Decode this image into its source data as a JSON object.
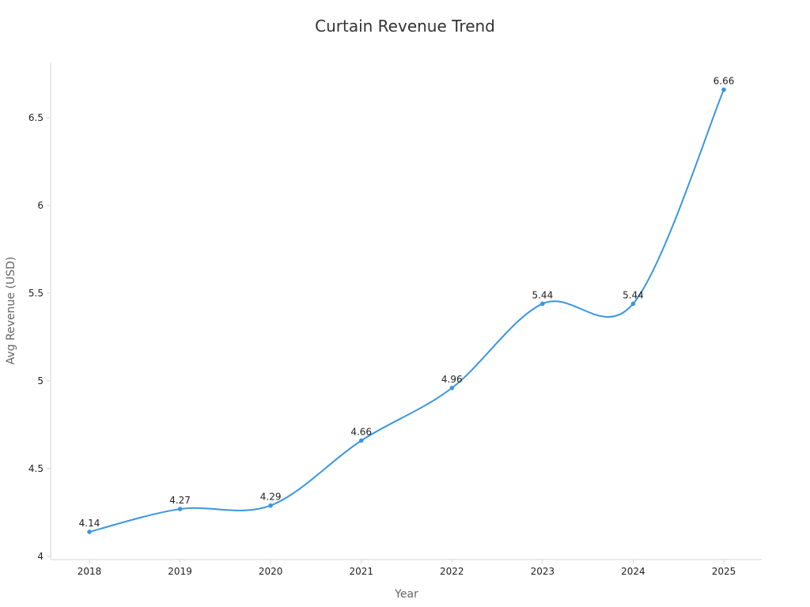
{
  "chart_data": {
    "type": "line",
    "title": "Curtain Revenue Trend",
    "xlabel": "Year",
    "ylabel": "Avg Revenue (USD)",
    "categories": [
      "2018",
      "2019",
      "2020",
      "2021",
      "2022",
      "2023",
      "2024",
      "2025"
    ],
    "series": [
      {
        "values": [
          4.14,
          4.27,
          4.29,
          4.66,
          4.96,
          5.44,
          5.44,
          6.66
        ],
        "color": "#3b96e1"
      }
    ],
    "yticks": [
      "4",
      "4.5",
      "5",
      "5.5",
      "6",
      "6.5"
    ],
    "data_labels": [
      "4.14",
      "4.27",
      "4.29",
      "4.66",
      "4.96",
      "5.44",
      "5.44",
      "6.66"
    ],
    "ylim": [
      4,
      6.8
    ],
    "grid": false,
    "smooth": true
  }
}
